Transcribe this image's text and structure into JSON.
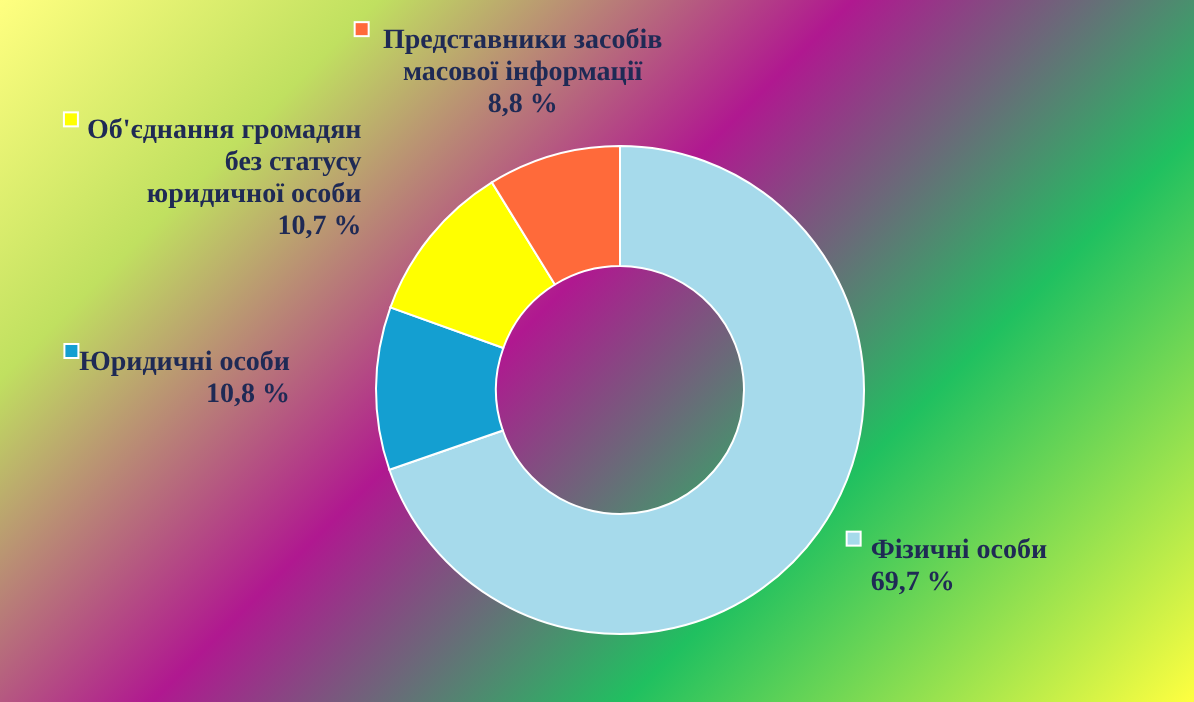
{
  "chart_data": {
    "type": "donut",
    "categories": [
      "Фізичні особи",
      "Юридичні особи",
      "Об'єднання громадян без статусу юридичної особи",
      "Представники засобів масової інформації"
    ],
    "values": [
      69.7,
      10.8,
      10.7,
      8.8
    ],
    "colors": [
      "#a6daeb",
      "#149fd1",
      "#ffff00",
      "#ff6a3a"
    ],
    "value_labels": [
      "69,7 %",
      "10,8 %",
      "10,7 %",
      "8,8 %"
    ],
    "legend": "top left"
  }
}
